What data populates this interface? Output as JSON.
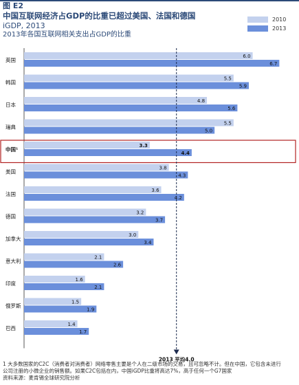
{
  "figure_label": "图 E2",
  "title": "中国互联网经济占GDP的比重已超过美国、法国和德国",
  "subtitle": "iGDP, 2013",
  "subtitle2": "2013年各国互联网相关支出占GDP的比重",
  "colors": {
    "s2010": "#c3d1ee",
    "s2013": "#6b8fdb",
    "highlight": "#b22222",
    "avg": "#1d2b4f",
    "title": "#2c4a78"
  },
  "chart_data": {
    "type": "bar",
    "orientation": "horizontal",
    "categories": [
      "英国",
      "韩国",
      "日本",
      "瑞典",
      "中国¹",
      "美国",
      "法国",
      "德国",
      "加拿大",
      "意大利",
      "印度",
      "俄罗斯",
      "巴西"
    ],
    "series": [
      {
        "name": "2010",
        "values": [
          6.0,
          5.5,
          4.8,
          5.5,
          3.3,
          3.8,
          3.6,
          3.2,
          3.0,
          2.1,
          1.6,
          1.5,
          1.4
        ]
      },
      {
        "name": "2013",
        "values": [
          6.7,
          5.9,
          5.6,
          5.0,
          4.4,
          4.3,
          4.2,
          3.7,
          3.4,
          2.6,
          2.1,
          1.9,
          1.7
        ]
      }
    ],
    "xlim": [
      0,
      7.0
    ],
    "highlight_category": "中国¹",
    "reference_line": {
      "value": 4.0,
      "label": "2013 平均4.0"
    }
  },
  "footer": {
    "note1": "1 大多数国家的C2C（消费者对消费者）网络零售主要是个人在二级市场的交易，且可忽略不计。但在中国，它包含未进行",
    "note2": "  公司注册的小微企业的销售额。如果C2C包括在内，中国iGDP比重将高达7%，高于任何一个G7国家",
    "source": "资料来源：麦肯锡全球研究院分析"
  }
}
